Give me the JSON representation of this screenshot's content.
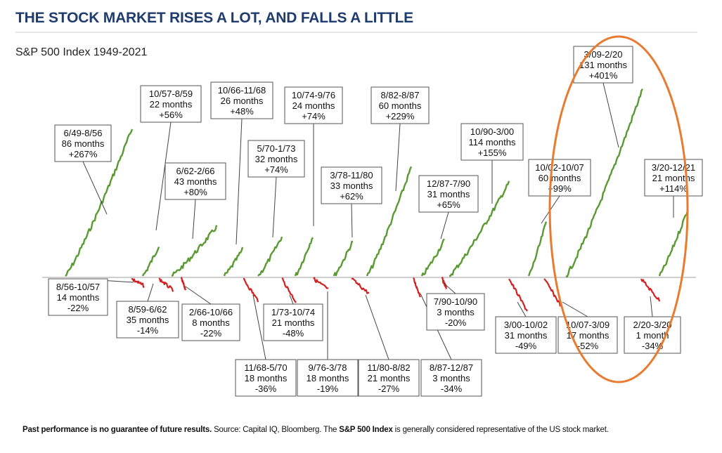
{
  "header": {
    "title": "THE STOCK MARKET RISES A LOT, AND FALLS A LITTLE",
    "subtitle": "S&P 500 Index 1949-2021"
  },
  "footnote": {
    "part1": "Past performance is no guarantee of future results.",
    "part2": " Source: Capital IQ, Bloomberg. The ",
    "part3": "S&P 500 Index",
    "part4": " is generally considered representative of the US stock market."
  },
  "colors": {
    "title": "#1f3c6e",
    "bull": "#5a9a32",
    "bear": "#d42020",
    "highlight": "#e87b2f",
    "box_border": "#555555"
  },
  "chart_data": {
    "type": "bar",
    "description_axis": "horizontal baseline at zero; bull markets rise above, bear markets fall below",
    "bull_markets": [
      {
        "period": "6/49-8/56",
        "months": "86 months",
        "change": "+267%",
        "value": 267,
        "duration": 86
      },
      {
        "period": "10/57-8/59",
        "months": "22 months",
        "change": "+56%",
        "value": 56,
        "duration": 22
      },
      {
        "period": "6/62-2/66",
        "months": "43 months",
        "change": "+80%",
        "value": 80,
        "duration": 43
      },
      {
        "period": "10/66-11/68",
        "months": "26 months",
        "change": "+48%",
        "value": 48,
        "duration": 26
      },
      {
        "period": "5/70-1/73",
        "months": "32 months",
        "change": "+74%",
        "value": 74,
        "duration": 32
      },
      {
        "period": "10/74-9/76",
        "months": "24 months",
        "change": "+74%",
        "value": 74,
        "duration": 24
      },
      {
        "period": "3/78-11/80",
        "months": "33 months",
        "change": "+62%",
        "value": 62,
        "duration": 33
      },
      {
        "period": "8/82-8/87",
        "months": "60 months",
        "change": "+229%",
        "value": 229,
        "duration": 60
      },
      {
        "period": "12/87-7/90",
        "months": "31 months",
        "change": "+65%",
        "value": 65,
        "duration": 31
      },
      {
        "period": "10/90-3/00",
        "months": "114 months",
        "change": "+155%",
        "value": 155,
        "duration": 114
      },
      {
        "period": "10/02-10/07",
        "months": "60 months",
        "change": "+99%",
        "value": 99,
        "duration": 60
      },
      {
        "period": "3/09-2/20",
        "months": "131 months",
        "change": "+401%",
        "value": 401,
        "duration": 131
      },
      {
        "period": "3/20-12/21",
        "months": "21 months",
        "change": "+114%",
        "value": 114,
        "duration": 21
      }
    ],
    "bear_markets": [
      {
        "period": "8/56-10/57",
        "months": "14 months",
        "change": "-22%",
        "value": -22,
        "duration": 14
      },
      {
        "period": "8/59-6/62",
        "months": "35 months",
        "change": "-14%",
        "value": -14,
        "duration": 35
      },
      {
        "period": "2/66-10/66",
        "months": "8 months",
        "change": "-22%",
        "value": -22,
        "duration": 8
      },
      {
        "period": "11/68-5/70",
        "months": "18 months",
        "change": "-36%",
        "value": -36,
        "duration": 18
      },
      {
        "period": "1/73-10/74",
        "months": "21 months",
        "change": "-48%",
        "value": -48,
        "duration": 21
      },
      {
        "period": "9/76-3/78",
        "months": "18 months",
        "change": "-19%",
        "value": -19,
        "duration": 18
      },
      {
        "period": "11/80-8/82",
        "months": "21 months",
        "change": "-27%",
        "value": -27,
        "duration": 21
      },
      {
        "period": "8/87-12/87",
        "months": "3 months",
        "change": "-34%",
        "value": -34,
        "duration": 3
      },
      {
        "period": "7/90-10/90",
        "months": "3 months",
        "change": "-20%",
        "value": -20,
        "duration": 3
      },
      {
        "period": "3/00-10/02",
        "months": "31 months",
        "change": "-49%",
        "value": -49,
        "duration": 31
      },
      {
        "period": "10/07-3/09",
        "months": "17 months",
        "change": "-52%",
        "value": -52,
        "duration": 17
      },
      {
        "period": "2/20-3/20",
        "months": "1 month",
        "change": "-34%",
        "value": -34,
        "duration": 1
      }
    ]
  }
}
